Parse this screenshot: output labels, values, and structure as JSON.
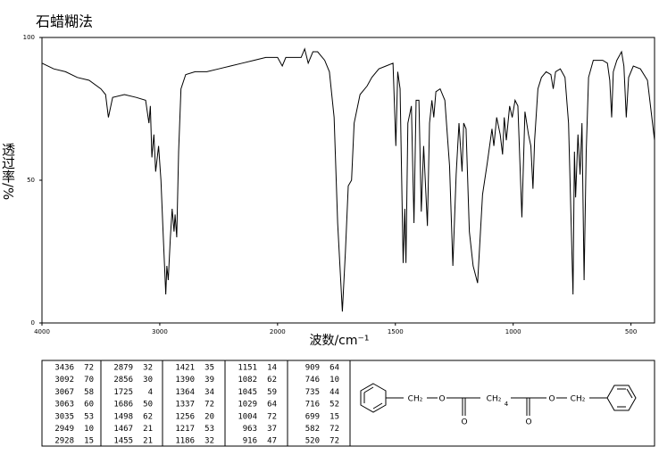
{
  "chart_data": {
    "type": "line",
    "title": "石蜡糊法",
    "x_label": "波数/cm⁻¹",
    "y_label": "透过率/%",
    "xlim": [
      4000,
      400
    ],
    "xticks": [
      4000,
      3000,
      2000,
      1500,
      1000,
      500
    ],
    "ylim": [
      0,
      100
    ],
    "yticks": [
      0,
      50,
      100
    ],
    "color": "#000000",
    "x": [
      4000,
      3900,
      3800,
      3700,
      3600,
      3500,
      3460,
      3436,
      3400,
      3300,
      3200,
      3120,
      3092,
      3080,
      3067,
      3063,
      3050,
      3035,
      3010,
      2990,
      2970,
      2949,
      2940,
      2928,
      2910,
      2895,
      2879,
      2870,
      2856,
      2840,
      2820,
      2780,
      2700,
      2600,
      2500,
      2400,
      2300,
      2200,
      2100,
      2000,
      1980,
      1965,
      1900,
      1885,
      1870,
      1850,
      1830,
      1800,
      1780,
      1760,
      1745,
      1725,
      1712,
      1700,
      1686,
      1675,
      1650,
      1620,
      1600,
      1570,
      1540,
      1510,
      1498,
      1490,
      1480,
      1467,
      1460,
      1455,
      1447,
      1432,
      1421,
      1412,
      1400,
      1390,
      1380,
      1364,
      1355,
      1345,
      1337,
      1328,
      1310,
      1290,
      1270,
      1256,
      1242,
      1230,
      1217,
      1210,
      1200,
      1186,
      1170,
      1151,
      1130,
      1110,
      1090,
      1082,
      1070,
      1055,
      1045,
      1038,
      1029,
      1015,
      1004,
      992,
      980,
      963,
      950,
      935,
      925,
      916,
      909,
      895,
      880,
      860,
      840,
      830,
      820,
      800,
      780,
      765,
      746,
      740,
      735,
      725,
      716,
      708,
      699,
      690,
      680,
      660,
      640,
      620,
      600,
      590,
      582,
      575,
      560,
      540,
      530,
      520,
      510,
      490,
      460,
      430,
      400
    ],
    "values": [
      91,
      89,
      88,
      86,
      85,
      82,
      80,
      72,
      79,
      80,
      79,
      78,
      70,
      76,
      58,
      60,
      66,
      53,
      62,
      50,
      30,
      10,
      20,
      15,
      30,
      40,
      32,
      38,
      30,
      60,
      82,
      87,
      88,
      88,
      89,
      90,
      91,
      92,
      93,
      93,
      90,
      93,
      93,
      96,
      91,
      95,
      95,
      92,
      88,
      72,
      35,
      4,
      25,
      48,
      50,
      70,
      80,
      83,
      86,
      89,
      90,
      91,
      62,
      88,
      82,
      21,
      40,
      21,
      70,
      76,
      35,
      78,
      78,
      39,
      62,
      34,
      70,
      78,
      72,
      81,
      82,
      78,
      55,
      20,
      52,
      70,
      53,
      70,
      68,
      32,
      20,
      14,
      45,
      56,
      68,
      62,
      72,
      66,
      59,
      72,
      64,
      76,
      72,
      78,
      76,
      37,
      74,
      66,
      62,
      47,
      64,
      82,
      86,
      88,
      87,
      82,
      88,
      89,
      86,
      70,
      10,
      60,
      44,
      66,
      52,
      70,
      15,
      60,
      86,
      92,
      92,
      92,
      91,
      85,
      72,
      88,
      92,
      95,
      90,
      72,
      86,
      90,
      89,
      85,
      64
    ]
  },
  "peaks": [
    [
      3436,
      72
    ],
    [
      3092,
      70
    ],
    [
      3067,
      58
    ],
    [
      3063,
      60
    ],
    [
      3035,
      53
    ],
    [
      2949,
      10
    ],
    [
      2928,
      15
    ],
    [
      2879,
      32
    ],
    [
      2856,
      30
    ],
    [
      1725,
      4
    ],
    [
      1686,
      50
    ],
    [
      1498,
      62
    ],
    [
      1467,
      21
    ],
    [
      1455,
      21
    ],
    [
      1421,
      35
    ],
    [
      1390,
      39
    ],
    [
      1364,
      34
    ],
    [
      1337,
      72
    ],
    [
      1256,
      20
    ],
    [
      1217,
      53
    ],
    [
      1186,
      32
    ],
    [
      1151,
      14
    ],
    [
      1082,
      62
    ],
    [
      1045,
      59
    ],
    [
      1029,
      64
    ],
    [
      1004,
      72
    ],
    [
      963,
      37
    ],
    [
      916,
      47
    ],
    [
      909,
      64
    ],
    [
      746,
      10
    ],
    [
      735,
      44
    ],
    [
      716,
      52
    ],
    [
      699,
      15
    ],
    [
      582,
      72
    ],
    [
      520,
      72
    ]
  ],
  "structure": {
    "labels": [
      "CH₂",
      "O",
      "O",
      "CH₂",
      "4",
      "O",
      "O",
      "CH₂"
    ]
  }
}
